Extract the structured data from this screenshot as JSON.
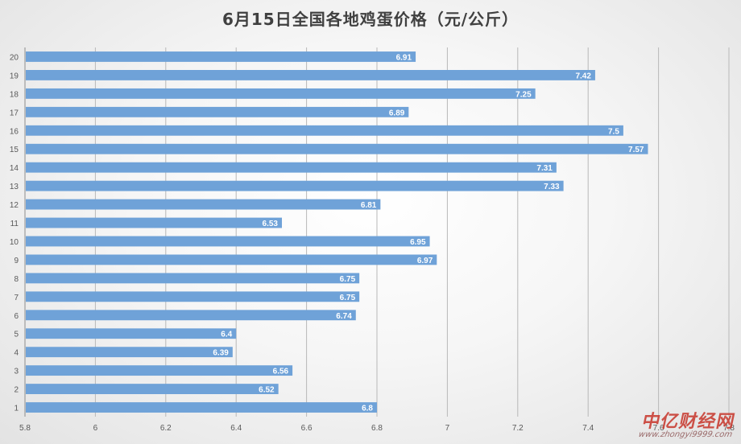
{
  "chart_data": {
    "type": "bar",
    "orientation": "horizontal",
    "title": "6月15日全国各地鸡蛋价格（元/公斤）",
    "categories": [
      "1",
      "2",
      "3",
      "4",
      "5",
      "6",
      "7",
      "8",
      "9",
      "10",
      "11",
      "12",
      "13",
      "14",
      "15",
      "16",
      "17",
      "18",
      "19",
      "20"
    ],
    "values": [
      6.8,
      6.52,
      6.56,
      6.39,
      6.4,
      6.74,
      6.75,
      6.75,
      6.97,
      6.95,
      6.53,
      6.81,
      7.33,
      7.31,
      7.57,
      7.5,
      6.89,
      7.25,
      7.42,
      6.91
    ],
    "xlim": [
      5.8,
      7.8
    ],
    "x_ticks": [
      "5.8",
      "6",
      "6.2",
      "6.4",
      "6.6",
      "6.8",
      "7",
      "7.2",
      "7.4",
      "7.6",
      "7.8"
    ],
    "grid": true,
    "data_labels": true,
    "bar_color": "#6fa2d8"
  },
  "watermark": {
    "main": "中亿财经网",
    "url": "www.zhongyi9999.com"
  }
}
